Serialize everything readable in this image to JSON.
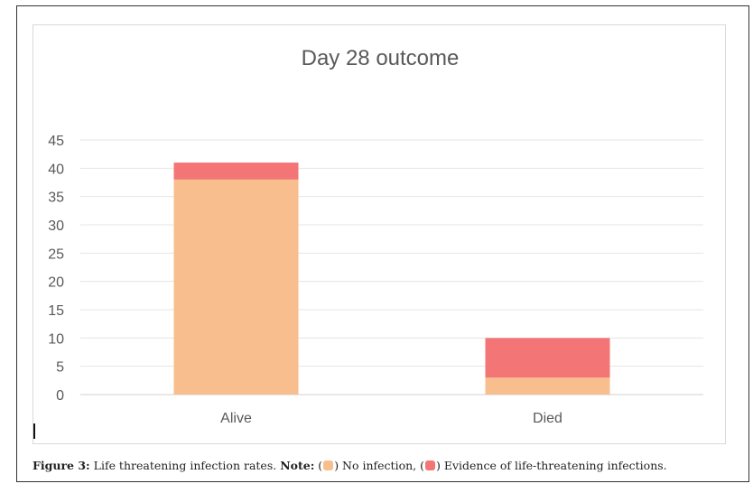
{
  "chart_data": {
    "type": "bar",
    "stacked": true,
    "title": "Day 28 outcome",
    "xlabel": "",
    "ylabel": "",
    "categories": [
      "Alive",
      "Died"
    ],
    "series": [
      {
        "values": [
          38,
          3
        ],
        "color": "#f8be8e"
      },
      {
        "values": [
          3,
          7
        ],
        "color": "#f47575"
      }
    ],
    "ylim": [
      0,
      45
    ],
    "yticks": [
      0,
      5,
      10,
      15,
      20,
      25,
      30,
      35,
      40,
      45
    ],
    "grid": true,
    "legend": "none"
  },
  "caption": {
    "label": "Figure 3:",
    "text": "Life threatening infection rates.",
    "note_label": "Note:",
    "item1_prefix": "(",
    "item1_suffix": ") No infection, (",
    "item2_suffix": ") Evidence of life-threatening infections.",
    "colors": {
      "no_infection": "#f8be8e",
      "life_threatening": "#f47575"
    }
  }
}
